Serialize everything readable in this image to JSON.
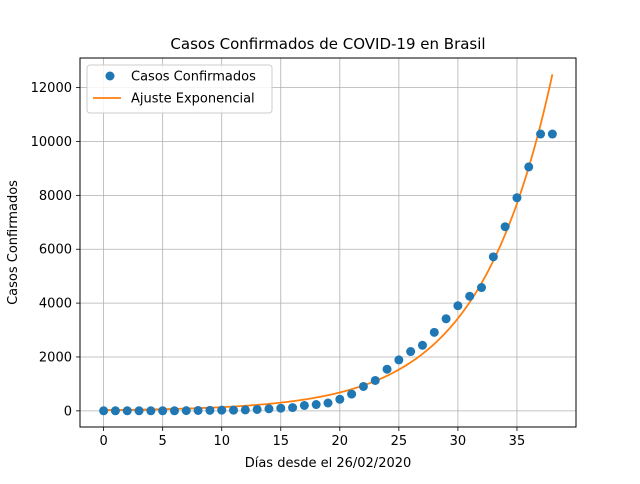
{
  "chart_data": {
    "type": "scatter",
    "title": "Casos Confirmados de COVID-19 en Brasil",
    "xlabel": "Días desde el 26/02/2020",
    "ylabel": "Casos Confirmados",
    "xlim": [
      -2,
      40
    ],
    "ylim": [
      -600,
      13100
    ],
    "xticks": [
      0,
      5,
      10,
      15,
      20,
      25,
      30,
      35
    ],
    "yticks": [
      0,
      2000,
      4000,
      6000,
      8000,
      10000,
      12000
    ],
    "grid": true,
    "legend_position": "top-left",
    "x": [
      0,
      1,
      2,
      3,
      4,
      5,
      6,
      7,
      8,
      9,
      10,
      11,
      12,
      13,
      14,
      15,
      16,
      17,
      18,
      19,
      20,
      21,
      22,
      23,
      24,
      25,
      26,
      27,
      28,
      29,
      30,
      31,
      32,
      33,
      34,
      35,
      36,
      37,
      38
    ],
    "series": [
      {
        "name": "Casos Confirmados",
        "kind": "scatter",
        "color": "#1f77b4",
        "values": [
          1,
          1,
          1,
          2,
          2,
          2,
          3,
          8,
          13,
          19,
          25,
          25,
          34,
          52,
          77,
          98,
          121,
          200,
          234,
          291,
          428,
          621,
          904,
          1128,
          1546,
          1891,
          2201,
          2433,
          2915,
          3417,
          3904,
          4256,
          4579,
          5717,
          6836,
          7910,
          9056,
          10278,
          10278
        ]
      },
      {
        "name": "Ajuste Exponencial",
        "kind": "line",
        "color": "#ff7f0e",
        "model": {
          "a": 27.0,
          "b": 0.1615
        }
      }
    ]
  }
}
